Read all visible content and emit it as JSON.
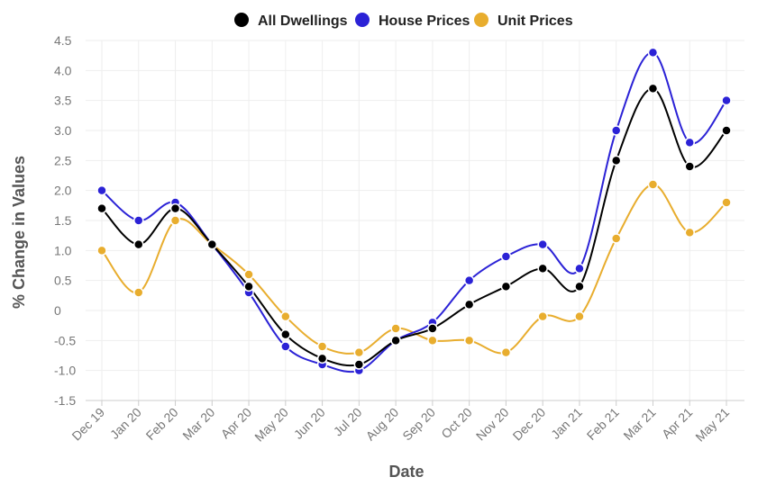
{
  "chart_data": {
    "type": "line",
    "title": "",
    "xlabel": "Date",
    "ylabel": "% Change in Values",
    "categories": [
      "Dec 19",
      "Jan 20",
      "Feb 20",
      "Mar 20",
      "Apr 20",
      "May 20",
      "Jun 20",
      "Jul 20",
      "Aug 20",
      "Sep 20",
      "Oct 20",
      "Nov 20",
      "Dec 20",
      "Jan 21",
      "Feb 21",
      "Mar 21",
      "Apr 21",
      "May 21"
    ],
    "ylim": [
      -1.5,
      4.5
    ],
    "yticks": [
      "4.5",
      "4.0",
      "3.5",
      "3.0",
      "2.5",
      "2.0",
      "1.5",
      "1.0",
      "0.5",
      "0",
      "-0.5",
      "-1.0",
      "-1.5"
    ],
    "grid": true,
    "legend_position": "top-center",
    "series": [
      {
        "name": "All Dwellings",
        "color": "#000000",
        "values": [
          1.7,
          1.1,
          1.7,
          1.1,
          0.4,
          -0.4,
          -0.8,
          -0.9,
          -0.5,
          -0.3,
          0.1,
          0.4,
          0.7,
          0.4,
          2.5,
          3.7,
          2.4,
          3.0
        ]
      },
      {
        "name": "House Prices",
        "color": "#2b22d6",
        "values": [
          2.0,
          1.5,
          1.8,
          1.1,
          0.3,
          -0.6,
          -0.9,
          -1.0,
          -0.5,
          -0.2,
          0.5,
          0.9,
          1.1,
          0.7,
          3.0,
          4.3,
          2.8,
          3.5
        ]
      },
      {
        "name": "Unit Prices",
        "color": "#e8ad2e",
        "values": [
          1.0,
          0.3,
          1.5,
          1.1,
          0.6,
          -0.1,
          -0.6,
          -0.7,
          -0.3,
          -0.5,
          -0.5,
          -0.7,
          -0.1,
          -0.1,
          1.2,
          2.1,
          1.3,
          1.8
        ]
      }
    ]
  }
}
